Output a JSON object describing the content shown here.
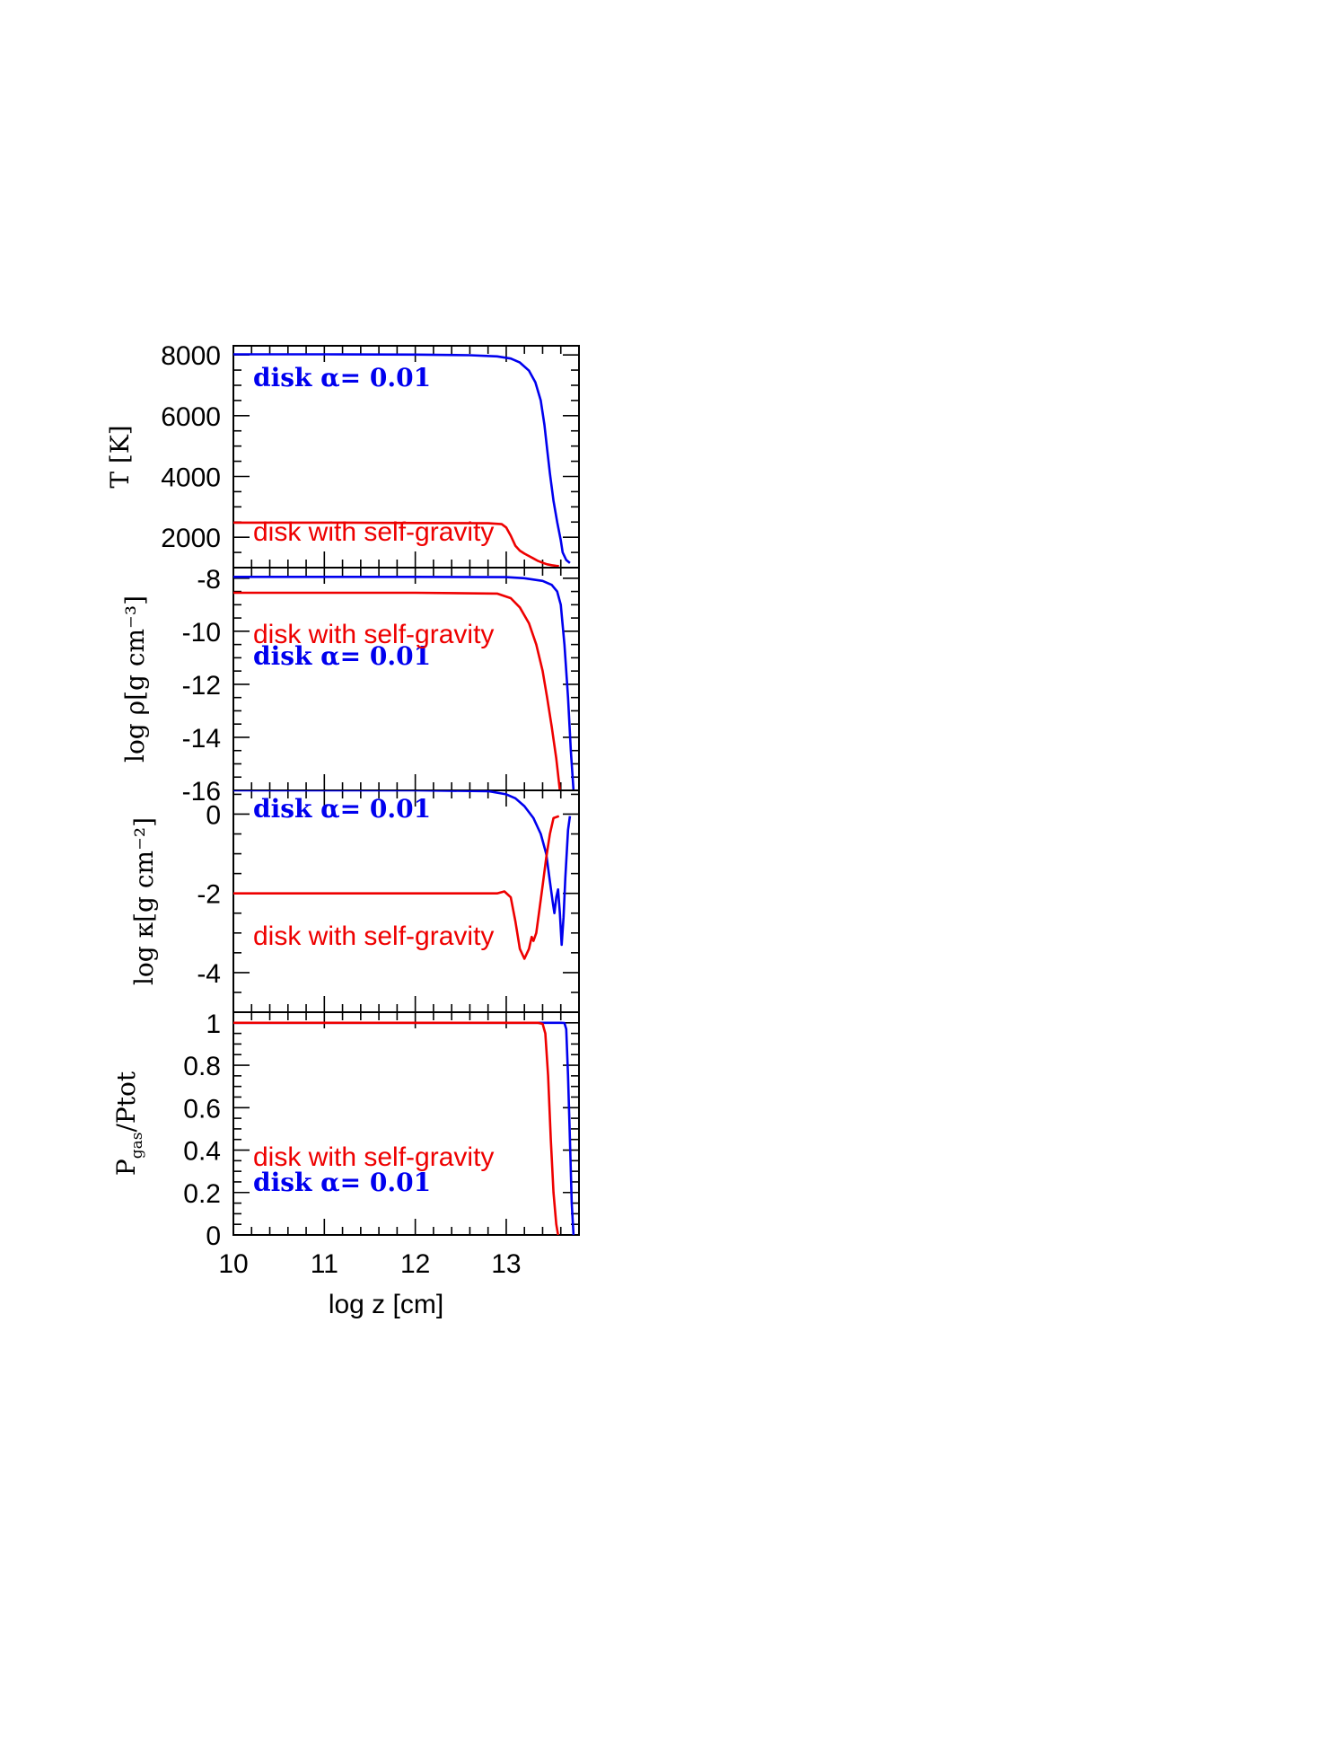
{
  "figure": {
    "xlabel": "log z [cm]",
    "x_ticks": [
      "10",
      "11",
      "12",
      "13"
    ],
    "xlim": [
      10,
      13.8
    ]
  },
  "legend": {
    "alpha_label": "disk  α=  0.01",
    "selfgrav_label": "disk with self-gravity"
  },
  "colors": {
    "alpha_disk": "#0000ee",
    "self_gravity_disk": "#ee0000",
    "axes": "#000000"
  },
  "chart_data": [
    {
      "type": "line",
      "ylabel": "T [K]",
      "ylim": [
        1000,
        8300
      ],
      "y_ticks": [
        "8000",
        "6000",
        "4000",
        "2000"
      ],
      "label_order": [
        "alpha",
        "selfgrav"
      ],
      "series": [
        {
          "name": "disk  α=  0.01",
          "x": [
            10.0,
            11.0,
            12.0,
            12.6,
            12.9,
            13.05,
            13.15,
            13.25,
            13.32,
            13.38,
            13.42,
            13.45,
            13.48,
            13.52,
            13.56,
            13.6,
            13.62,
            13.66,
            13.7
          ],
          "y": [
            8020,
            8020,
            8010,
            7990,
            7950,
            7880,
            7750,
            7480,
            7100,
            6500,
            5700,
            4900,
            4100,
            3200,
            2500,
            1900,
            1500,
            1250,
            1150
          ]
        },
        {
          "name": "disk with self-gravity",
          "x": [
            10.0,
            11.0,
            12.0,
            12.8,
            12.95,
            13.0,
            13.05,
            13.1,
            13.15,
            13.2,
            13.25,
            13.3,
            13.35,
            13.4,
            13.45,
            13.5,
            13.55,
            13.58
          ],
          "y": [
            2480,
            2480,
            2470,
            2460,
            2430,
            2320,
            2050,
            1720,
            1560,
            1460,
            1380,
            1300,
            1220,
            1160,
            1110,
            1080,
            1060,
            1050
          ]
        }
      ]
    },
    {
      "type": "line",
      "ylabel": "log ρ[g cm⁻³]",
      "ylim": [
        -16,
        -7.6
      ],
      "y_ticks": [
        "-8",
        "-10",
        "-12",
        "-14",
        "-16"
      ],
      "label_order": [
        "selfgrav",
        "alpha"
      ],
      "series": [
        {
          "name": "disk  α=  0.01",
          "x": [
            10.0,
            11.0,
            12.0,
            13.0,
            13.2,
            13.4,
            13.5,
            13.56,
            13.6,
            13.64,
            13.68,
            13.71,
            13.74
          ],
          "y": [
            -7.95,
            -7.95,
            -7.95,
            -7.96,
            -8.0,
            -8.1,
            -8.25,
            -8.5,
            -9.0,
            -10.5,
            -12.5,
            -14.5,
            -16.0
          ]
        },
        {
          "name": "disk with self-gravity",
          "x": [
            10.0,
            11.0,
            12.0,
            12.9,
            13.05,
            13.15,
            13.25,
            13.33,
            13.4,
            13.45,
            13.5,
            13.55,
            13.59
          ],
          "y": [
            -8.55,
            -8.55,
            -8.55,
            -8.58,
            -8.75,
            -9.1,
            -9.7,
            -10.5,
            -11.5,
            -12.5,
            -13.6,
            -14.8,
            -16.0
          ]
        }
      ]
    },
    {
      "type": "line",
      "ylabel": "log κ[g cm⁻²]",
      "ylim": [
        -5.0,
        0.6
      ],
      "y_ticks": [
        "0",
        "-2",
        "-4"
      ],
      "label_order": [
        "alpha",
        "selfgrav"
      ],
      "series": [
        {
          "name": "disk  α=  0.01",
          "x": [
            10.0,
            11.0,
            12.0,
            12.8,
            13.0,
            13.1,
            13.2,
            13.3,
            13.38,
            13.44,
            13.48,
            13.51,
            13.53,
            13.55,
            13.57,
            13.59,
            13.61,
            13.63,
            13.65,
            13.68,
            13.7
          ],
          "y": [
            0.6,
            0.6,
            0.6,
            0.58,
            0.5,
            0.4,
            0.2,
            -0.1,
            -0.5,
            -1.0,
            -1.7,
            -2.2,
            -2.5,
            -2.1,
            -1.9,
            -2.5,
            -3.3,
            -2.6,
            -1.6,
            -0.4,
            -0.05
          ]
        },
        {
          "name": "disk with self-gravity",
          "x": [
            10.0,
            11.0,
            12.0,
            12.9,
            12.98,
            13.05,
            13.1,
            13.15,
            13.2,
            13.25,
            13.28,
            13.3,
            13.33,
            13.36,
            13.4,
            13.44,
            13.48,
            13.52,
            13.58
          ],
          "y": [
            -2.0,
            -2.0,
            -2.0,
            -2.0,
            -1.95,
            -2.1,
            -2.7,
            -3.4,
            -3.65,
            -3.4,
            -3.1,
            -3.2,
            -3.0,
            -2.5,
            -1.8,
            -1.1,
            -0.5,
            -0.1,
            -0.05
          ]
        }
      ]
    },
    {
      "type": "line",
      "ylabel": "P",
      "ylabel_sub": "gas",
      "ylabel_tail": "/Ptot",
      "ylim": [
        0,
        1.05
      ],
      "y_ticks": [
        "1",
        "0.8",
        "0.6",
        "0.4",
        "0.2",
        "0"
      ],
      "label_order": [
        "selfgrav",
        "alpha"
      ],
      "series": [
        {
          "name": "disk  α=  0.01",
          "x": [
            10.0,
            11.0,
            12.0,
            13.0,
            13.6,
            13.64,
            13.66,
            13.68,
            13.7,
            13.72,
            13.74
          ],
          "y": [
            1.0,
            1.0,
            1.0,
            1.0,
            1.0,
            0.999,
            0.97,
            0.75,
            0.45,
            0.15,
            0.0
          ]
        },
        {
          "name": "disk with self-gravity",
          "x": [
            10.0,
            11.0,
            12.0,
            13.0,
            13.35,
            13.4,
            13.43,
            13.46,
            13.49,
            13.52,
            13.55,
            13.57
          ],
          "y": [
            1.0,
            1.0,
            1.0,
            1.0,
            1.0,
            0.995,
            0.95,
            0.75,
            0.45,
            0.2,
            0.05,
            0.0
          ]
        }
      ]
    }
  ]
}
